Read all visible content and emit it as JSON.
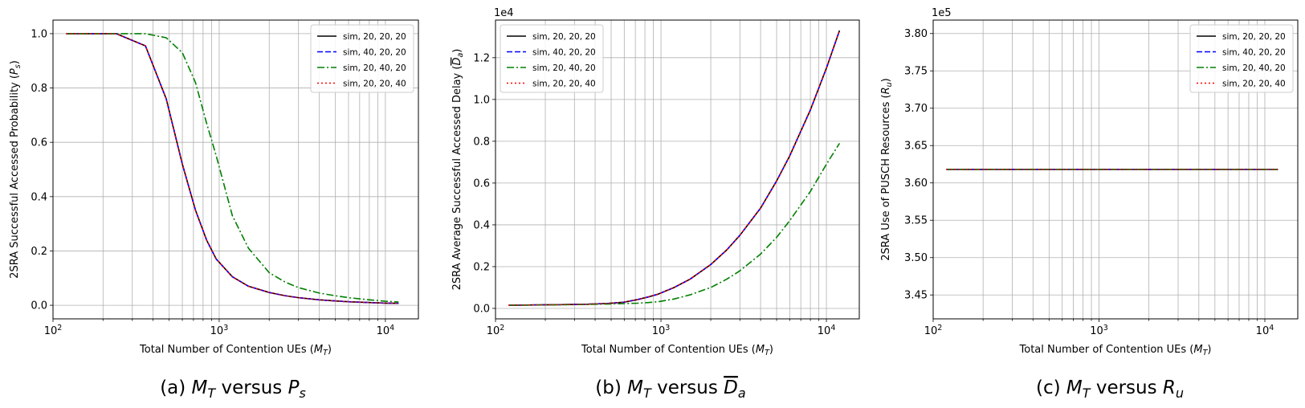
{
  "chart_data": [
    {
      "type": "line",
      "xscale": "log",
      "xlim": [
        100,
        15800
      ],
      "ylim": [
        -0.05,
        1.05
      ],
      "yticks": [
        0.0,
        0.2,
        0.4,
        0.6,
        0.8,
        1.0
      ],
      "ytick_labels": [
        "0.0",
        "0.2",
        "0.4",
        "0.6",
        "0.8",
        "1.0"
      ],
      "xtick_labels": [
        {
          "base": "10",
          "exp": "2"
        },
        {
          "base": "10",
          "exp": "3"
        },
        {
          "base": "10",
          "exp": "4"
        }
      ],
      "yoffset_text": "",
      "xlabel": {
        "text": "Total Number of Contention UEs (",
        "math": "M",
        "sub": "T",
        "close": ")"
      },
      "ylabel": {
        "text": "2SRA Successful Accessed Probability (",
        "math": "P",
        "sub": "s",
        "close": ")"
      },
      "caption": {
        "prefix": "(a) ",
        "m1": "M",
        "s1": "T",
        "mid": " versus ",
        "m2": "P",
        "s2": "s",
        "overline": false
      },
      "legend_position": "top-right",
      "grid": true,
      "x": [
        120,
        240,
        360,
        480,
        600,
        720,
        840,
        960,
        1200,
        1500,
        2000,
        2500,
        3000,
        4000,
        5000,
        6000,
        8000,
        10000,
        12000
      ],
      "series": [
        {
          "name": "sim, 20, 20, 20",
          "color": "#000000",
          "dash": "solid",
          "values": [
            1.0,
            1.0,
            0.955,
            0.76,
            0.52,
            0.35,
            0.24,
            0.17,
            0.105,
            0.07,
            0.047,
            0.035,
            0.028,
            0.02,
            0.016,
            0.013,
            0.01,
            0.008,
            0.007
          ]
        },
        {
          "name": "sim, 40, 20, 20",
          "color": "#0000ff",
          "dash": "dashed",
          "values": [
            1.0,
            1.0,
            0.955,
            0.76,
            0.52,
            0.35,
            0.24,
            0.17,
            0.105,
            0.07,
            0.047,
            0.035,
            0.028,
            0.02,
            0.016,
            0.013,
            0.01,
            0.008,
            0.007
          ]
        },
        {
          "name": "sim, 20, 40, 20",
          "color": "#008000",
          "dash": "dashdot",
          "values": [
            1.0,
            1.0,
            1.0,
            0.985,
            0.93,
            0.82,
            0.67,
            0.55,
            0.33,
            0.21,
            0.12,
            0.085,
            0.065,
            0.045,
            0.035,
            0.028,
            0.02,
            0.015,
            0.012
          ]
        },
        {
          "name": "sim, 20, 20, 40",
          "color": "#ff0000",
          "dash": "dotted",
          "values": [
            1.0,
            1.0,
            0.955,
            0.76,
            0.52,
            0.35,
            0.24,
            0.17,
            0.105,
            0.07,
            0.047,
            0.035,
            0.028,
            0.02,
            0.016,
            0.013,
            0.01,
            0.008,
            0.007
          ]
        }
      ]
    },
    {
      "type": "line",
      "xscale": "log",
      "xlim": [
        100,
        15800
      ],
      "ylim": [
        -0.05,
        1.38
      ],
      "yticks": [
        0.0,
        0.2,
        0.4,
        0.6,
        0.8,
        1.0,
        1.2
      ],
      "ytick_labels": [
        "0.0",
        "0.2",
        "0.4",
        "0.6",
        "0.8",
        "1.0",
        "1.2"
      ],
      "xtick_labels": [
        {
          "base": "10",
          "exp": "2"
        },
        {
          "base": "10",
          "exp": "3"
        },
        {
          "base": "10",
          "exp": "4"
        }
      ],
      "yoffset_text": "1e4",
      "xlabel": {
        "text": "Total Number of Contention UEs (",
        "math": "M",
        "sub": "T",
        "close": ")"
      },
      "ylabel": {
        "text": "2SRA Average Successful Accessed Delay (",
        "math": "D",
        "sub": "a",
        "close": ")",
        "overline": true
      },
      "caption": {
        "prefix": "(b) ",
        "m1": "M",
        "s1": "T",
        "mid": " versus ",
        "m2": "D",
        "s2": "a",
        "overline": true
      },
      "legend_position": "top-left",
      "grid": true,
      "x": [
        120,
        240,
        360,
        480,
        600,
        720,
        840,
        960,
        1200,
        1500,
        2000,
        2500,
        3000,
        4000,
        5000,
        6000,
        8000,
        10000,
        12000
      ],
      "series": [
        {
          "name": "sim, 20, 20, 20",
          "color": "#000000",
          "dash": "solid",
          "values": [
            0.015,
            0.018,
            0.02,
            0.024,
            0.03,
            0.042,
            0.055,
            0.068,
            0.1,
            0.14,
            0.21,
            0.28,
            0.35,
            0.48,
            0.61,
            0.73,
            0.95,
            1.15,
            1.33
          ]
        },
        {
          "name": "sim, 40, 20, 20",
          "color": "#0000ff",
          "dash": "dashed",
          "values": [
            0.015,
            0.018,
            0.02,
            0.024,
            0.03,
            0.042,
            0.055,
            0.068,
            0.1,
            0.14,
            0.21,
            0.28,
            0.35,
            0.48,
            0.61,
            0.73,
            0.95,
            1.15,
            1.33
          ]
        },
        {
          "name": "sim, 20, 40, 20",
          "color": "#008000",
          "dash": "dashdot",
          "values": [
            0.015,
            0.017,
            0.019,
            0.021,
            0.023,
            0.025,
            0.028,
            0.032,
            0.045,
            0.065,
            0.1,
            0.14,
            0.18,
            0.26,
            0.34,
            0.42,
            0.56,
            0.69,
            0.79
          ]
        },
        {
          "name": "sim, 20, 20, 40",
          "color": "#ff0000",
          "dash": "dotted",
          "values": [
            0.015,
            0.018,
            0.02,
            0.024,
            0.03,
            0.042,
            0.055,
            0.068,
            0.1,
            0.14,
            0.21,
            0.28,
            0.35,
            0.48,
            0.61,
            0.73,
            0.95,
            1.15,
            1.33
          ]
        }
      ]
    },
    {
      "type": "line",
      "xscale": "log",
      "xlim": [
        100,
        15800
      ],
      "ylim": [
        3.418,
        3.818
      ],
      "yticks": [
        3.45,
        3.5,
        3.55,
        3.6,
        3.65,
        3.7,
        3.75,
        3.8
      ],
      "ytick_labels": [
        "3.45",
        "3.50",
        "3.55",
        "3.60",
        "3.65",
        "3.70",
        "3.75",
        "3.80"
      ],
      "xtick_labels": [
        {
          "base": "10",
          "exp": "2"
        },
        {
          "base": "10",
          "exp": "3"
        },
        {
          "base": "10",
          "exp": "4"
        }
      ],
      "yoffset_text": "1e5",
      "xlabel": {
        "text": "Total Number of Contention UEs (",
        "math": "M",
        "sub": "T",
        "close": ")"
      },
      "ylabel": {
        "text": "2SRA Use of PUSCH Resources (",
        "math": "R",
        "sub": "u",
        "close": ")"
      },
      "caption": {
        "prefix": "(c) ",
        "m1": "M",
        "s1": "T",
        "mid": " versus ",
        "m2": "R",
        "s2": "u",
        "overline": false
      },
      "legend_position": "top-right",
      "grid": true,
      "x": [
        120,
        12000
      ],
      "series": [
        {
          "name": "sim, 20, 20, 20",
          "color": "#000000",
          "dash": "solid",
          "values": [
            3.618,
            3.618
          ]
        },
        {
          "name": "sim, 40, 20, 20",
          "color": "#0000ff",
          "dash": "dashed",
          "values": [
            3.618,
            3.618
          ]
        },
        {
          "name": "sim, 20, 40, 20",
          "color": "#008000",
          "dash": "dashdot",
          "values": [
            3.618,
            3.618
          ]
        },
        {
          "name": "sim, 20, 20, 40",
          "color": "#ff0000",
          "dash": "dotted",
          "values": [
            3.618,
            3.618
          ]
        }
      ]
    }
  ]
}
